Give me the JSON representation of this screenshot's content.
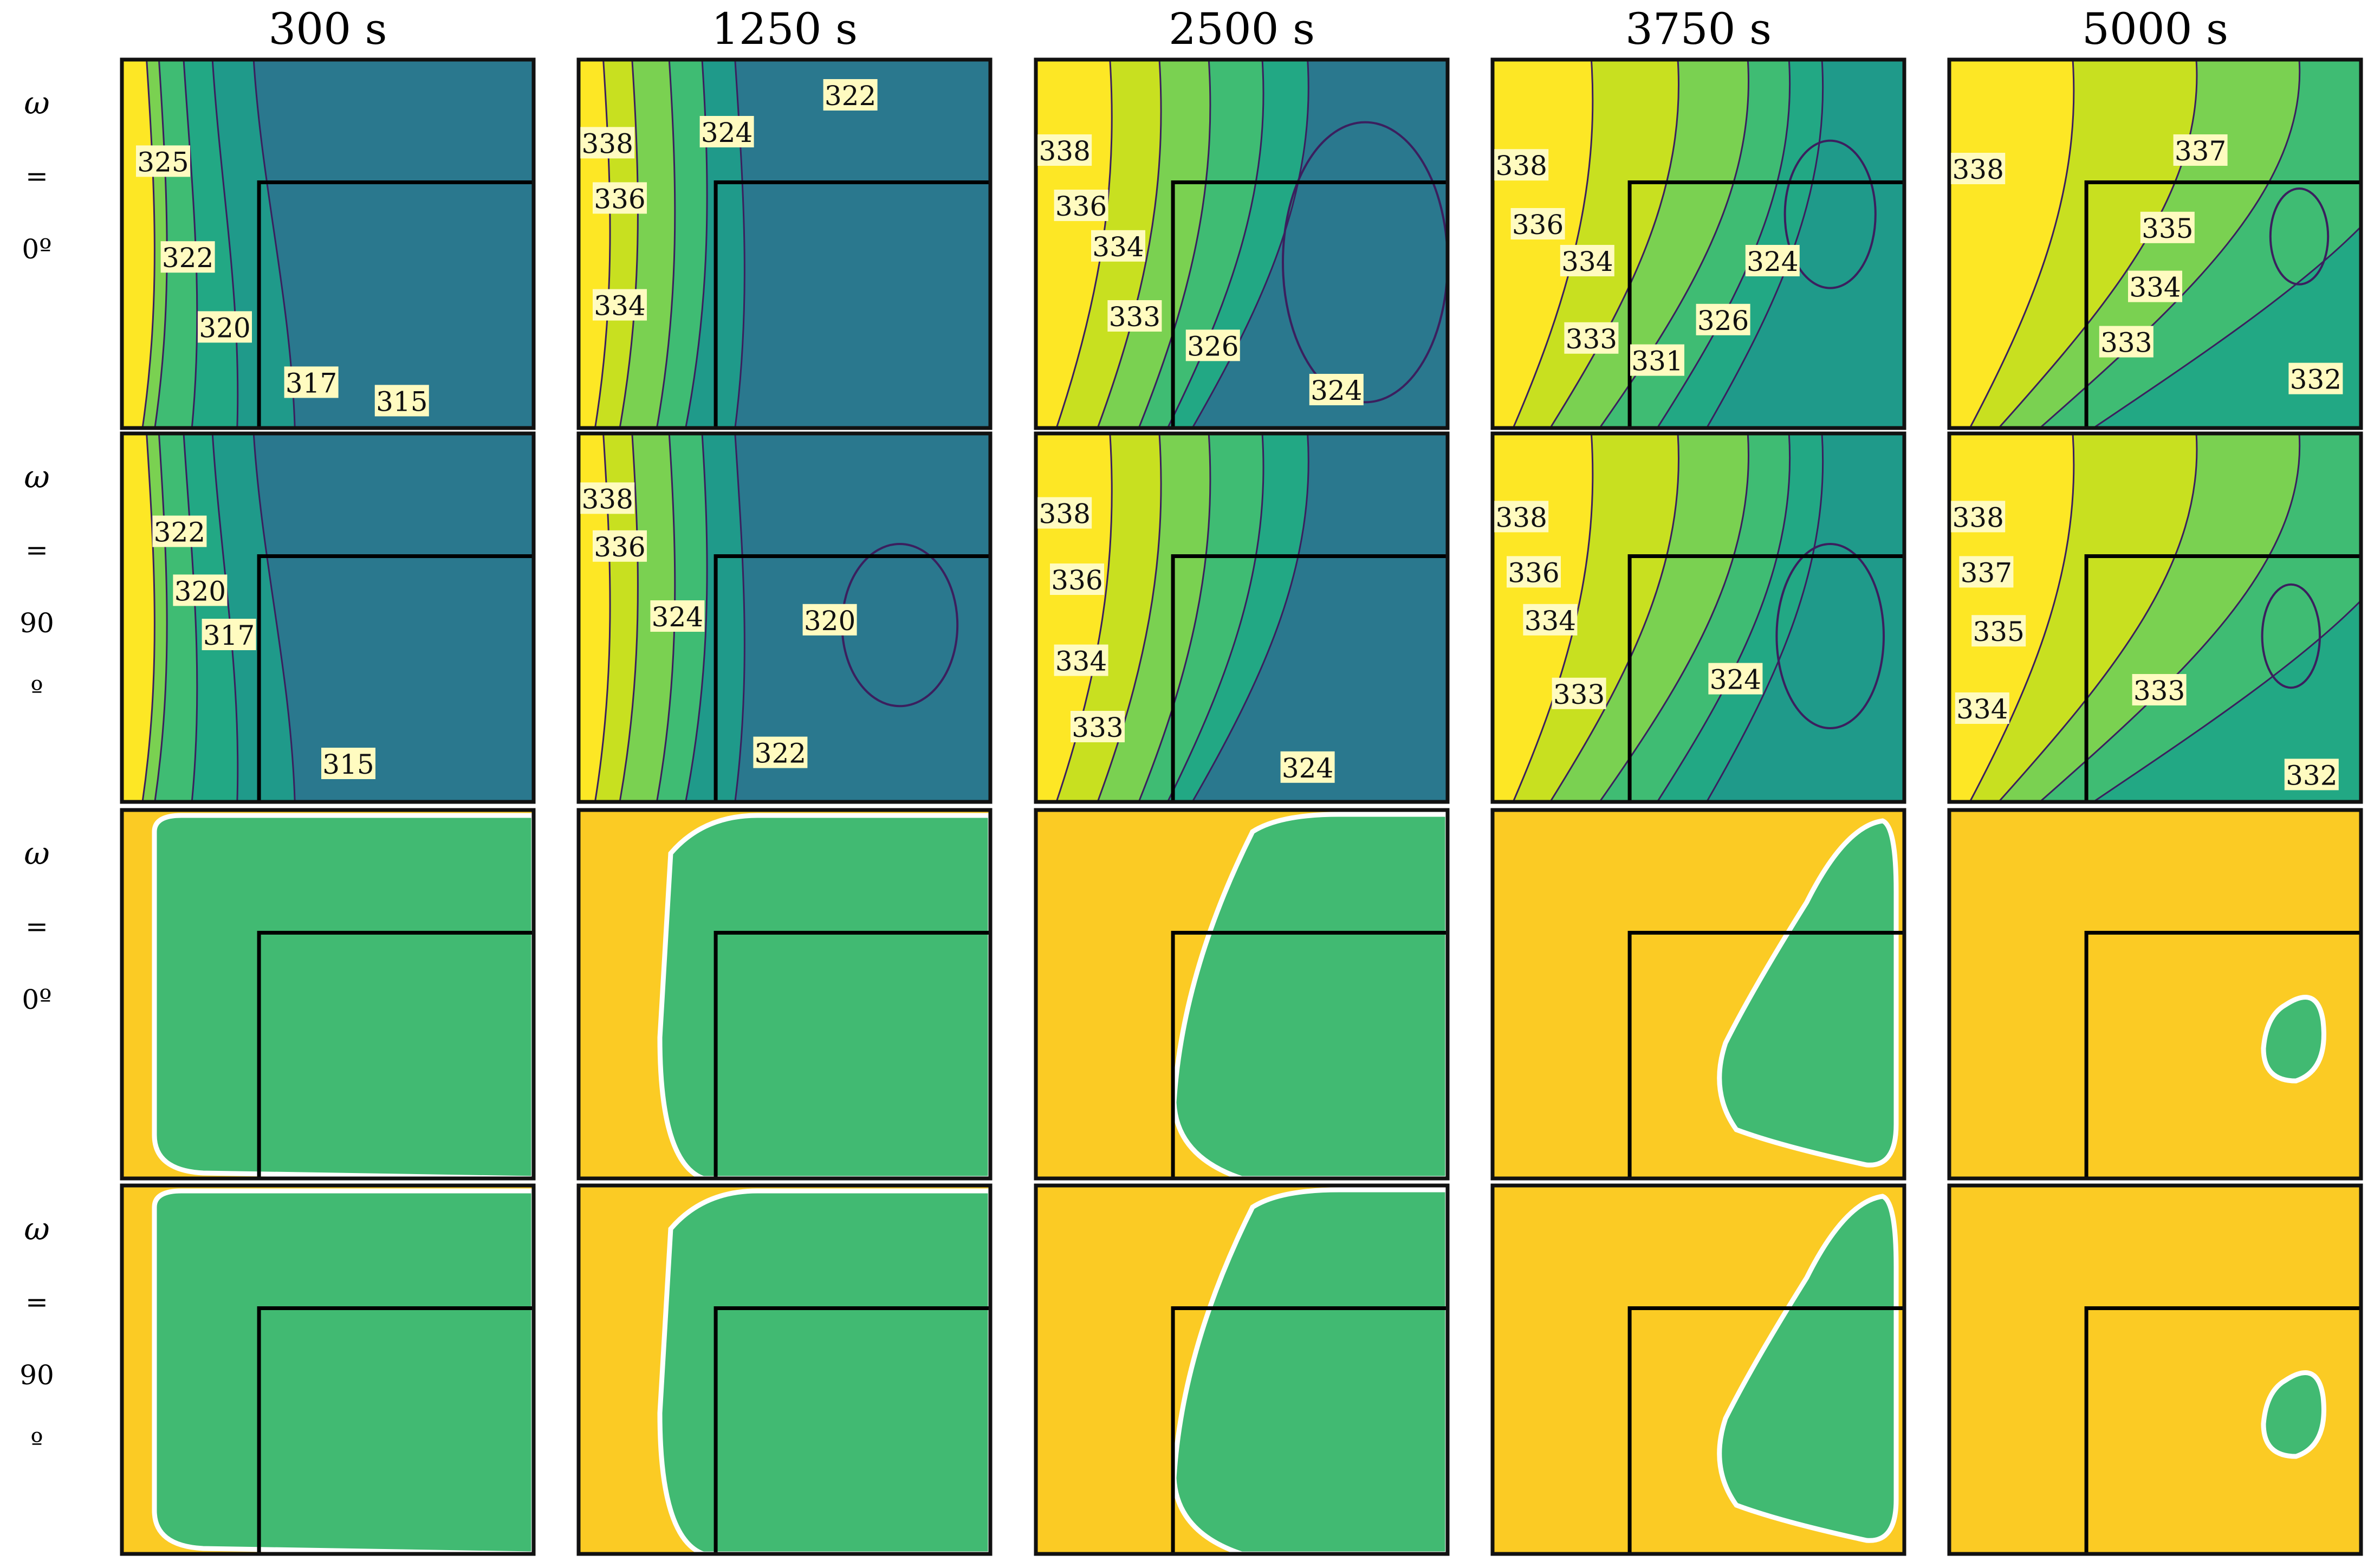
{
  "columns": [
    "300 s",
    "1250 s",
    "2500 s",
    "3750 s",
    "5000 s"
  ],
  "rows": [
    {
      "tokens": [
        "ω",
        "=",
        "0º"
      ]
    },
    {
      "tokens": [
        "ω",
        "=",
        "90",
        "º"
      ]
    },
    {
      "tokens": [
        "ω",
        "=",
        "0º"
      ]
    },
    {
      "tokens": [
        "ω",
        "=",
        "90",
        "º"
      ]
    }
  ],
  "contour_labels": [
    [
      "325",
      "322",
      "320",
      "317",
      "315"
    ],
    [
      "322",
      "338",
      "324",
      "336",
      "334"
    ],
    [
      "338",
      "336",
      "334",
      "333",
      "326",
      "324"
    ],
    [
      "338",
      "336",
      "334",
      "324",
      "326",
      "333",
      "331"
    ],
    [
      "338",
      "337",
      "335",
      "334",
      "333",
      "332"
    ],
    [
      "322",
      "320",
      "317",
      "315"
    ],
    [
      "338",
      "336",
      "324",
      "320",
      "322"
    ],
    [
      "338",
      "336",
      "334",
      "333",
      "324"
    ],
    [
      "338",
      "336",
      "334",
      "333",
      "324"
    ],
    [
      "338",
      "337",
      "335",
      "334",
      "333",
      "332"
    ]
  ],
  "colors": {
    "hot": "#fde725",
    "yellow_green": "#c8e020",
    "light_green": "#7ad151",
    "green": "#3fbc73",
    "teal_green": "#22a884",
    "teal": "#1f9a8a",
    "deep_teal": "#2a788e",
    "line": "#3b1f5e",
    "phase_solid": "#fbcb24",
    "phase_liquid": "#41ba72",
    "interface": "#ffffff",
    "fin": "#000000",
    "label_bg": "#fffbc0"
  }
}
